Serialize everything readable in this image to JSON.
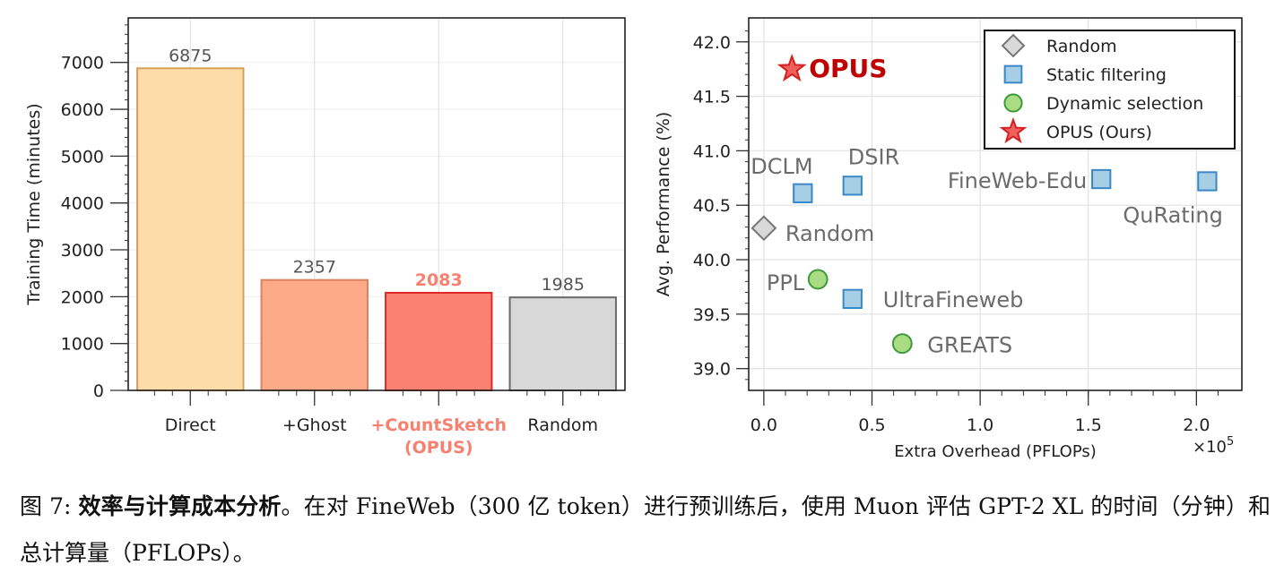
{
  "chart_data": [
    {
      "type": "bar",
      "title": "",
      "xlabel": "",
      "ylabel": "Training Time (minutes)",
      "categories": [
        "Direct",
        "+Ghost",
        "+CountSketch\n(OPUS)",
        "Random"
      ],
      "category_lines": [
        [
          "Direct"
        ],
        [
          "+Ghost"
        ],
        [
          "+CountSketch",
          "(OPUS)"
        ],
        [
          "Random"
        ]
      ],
      "values": [
        6875,
        2357,
        2083,
        1985
      ],
      "data_labels": [
        "6875",
        "2357",
        "2083",
        "1985"
      ],
      "highlight_index": 2,
      "colors": {
        "fill": [
          "#fddcaa",
          "#fcaa88",
          "#f98272",
          "#d8d8d8"
        ],
        "stroke": [
          "#d5a05c",
          "#d9825f",
          "#e02a2a",
          "#6a6a6a"
        ],
        "highlight_text": "#f7806f"
      },
      "ylim": [
        0,
        7950
      ],
      "yticks": [
        0,
        1000,
        2000,
        3000,
        4000,
        5000,
        6000,
        7000
      ],
      "grid": true
    },
    {
      "type": "scatter",
      "title": "",
      "xlabel": "Extra Overhead (PFLOPs)",
      "x_multiplier_label": "×10",
      "x_multiplier_exp": "5",
      "ylabel": "Avg. Performance (%)",
      "xlim": [
        -0.07,
        2.21
      ],
      "ylim": [
        38.8,
        42.22
      ],
      "xticks": [
        0.0,
        0.5,
        1.0,
        1.5,
        2.0
      ],
      "xtick_labels": [
        "0.0",
        "0.5",
        "1.0",
        "1.5",
        "2.0"
      ],
      "yticks": [
        39.0,
        39.5,
        40.0,
        40.5,
        41.0,
        41.5,
        42.0
      ],
      "ytick_labels": [
        "39.0",
        "39.5",
        "40.0",
        "40.5",
        "41.0",
        "41.5",
        "42.0"
      ],
      "grid": true,
      "legend_position": "top-right",
      "legend": [
        {
          "label": "Random",
          "group": "random"
        },
        {
          "label": "Static filtering",
          "group": "static"
        },
        {
          "label": "Dynamic selection",
          "group": "dynamic"
        },
        {
          "label": "OPUS (Ours)",
          "group": "opus"
        }
      ],
      "group_styles": {
        "random": {
          "marker": "diamond",
          "fill": "#d9d9d9",
          "stroke": "#777777"
        },
        "static": {
          "marker": "square",
          "fill": "#a6cfe6",
          "stroke": "#3a87c7"
        },
        "dynamic": {
          "marker": "circle",
          "fill": "#a9dc83",
          "stroke": "#3d9a3a"
        },
        "opus": {
          "marker": "star",
          "fill": "#f0605a",
          "stroke": "#d42020"
        }
      },
      "points": [
        {
          "label": "Random",
          "group": "random",
          "x": 0.0,
          "y": 40.29
        },
        {
          "label": "DCLM",
          "group": "static",
          "x": 0.18,
          "y": 40.61
        },
        {
          "label": "DSIR",
          "group": "static",
          "x": 0.41,
          "y": 40.68
        },
        {
          "label": "FineWeb-Edu",
          "group": "static",
          "x": 1.56,
          "y": 40.74
        },
        {
          "label": "QuRating",
          "group": "static",
          "x": 2.05,
          "y": 40.72
        },
        {
          "label": "UltraFineweb",
          "group": "static",
          "x": 0.41,
          "y": 39.64
        },
        {
          "label": "PPL",
          "group": "dynamic",
          "x": 0.25,
          "y": 39.82
        },
        {
          "label": "GREATS",
          "group": "dynamic",
          "x": 0.64,
          "y": 39.23
        },
        {
          "label": "OPUS",
          "group": "opus",
          "x": 0.13,
          "y": 41.75
        }
      ],
      "label_colors": {
        "default": "#6b6b6b",
        "opus": "#c00000"
      }
    }
  ],
  "caption": {
    "prefix": "图 7: ",
    "bold": "效率与计算成本分析",
    "text": "。在对 FineWeb（300 亿 token）进行预训练后，使用 Muon 评估 GPT-2 XL 的时间（分钟）和总计算量（PFLOPs）。"
  }
}
